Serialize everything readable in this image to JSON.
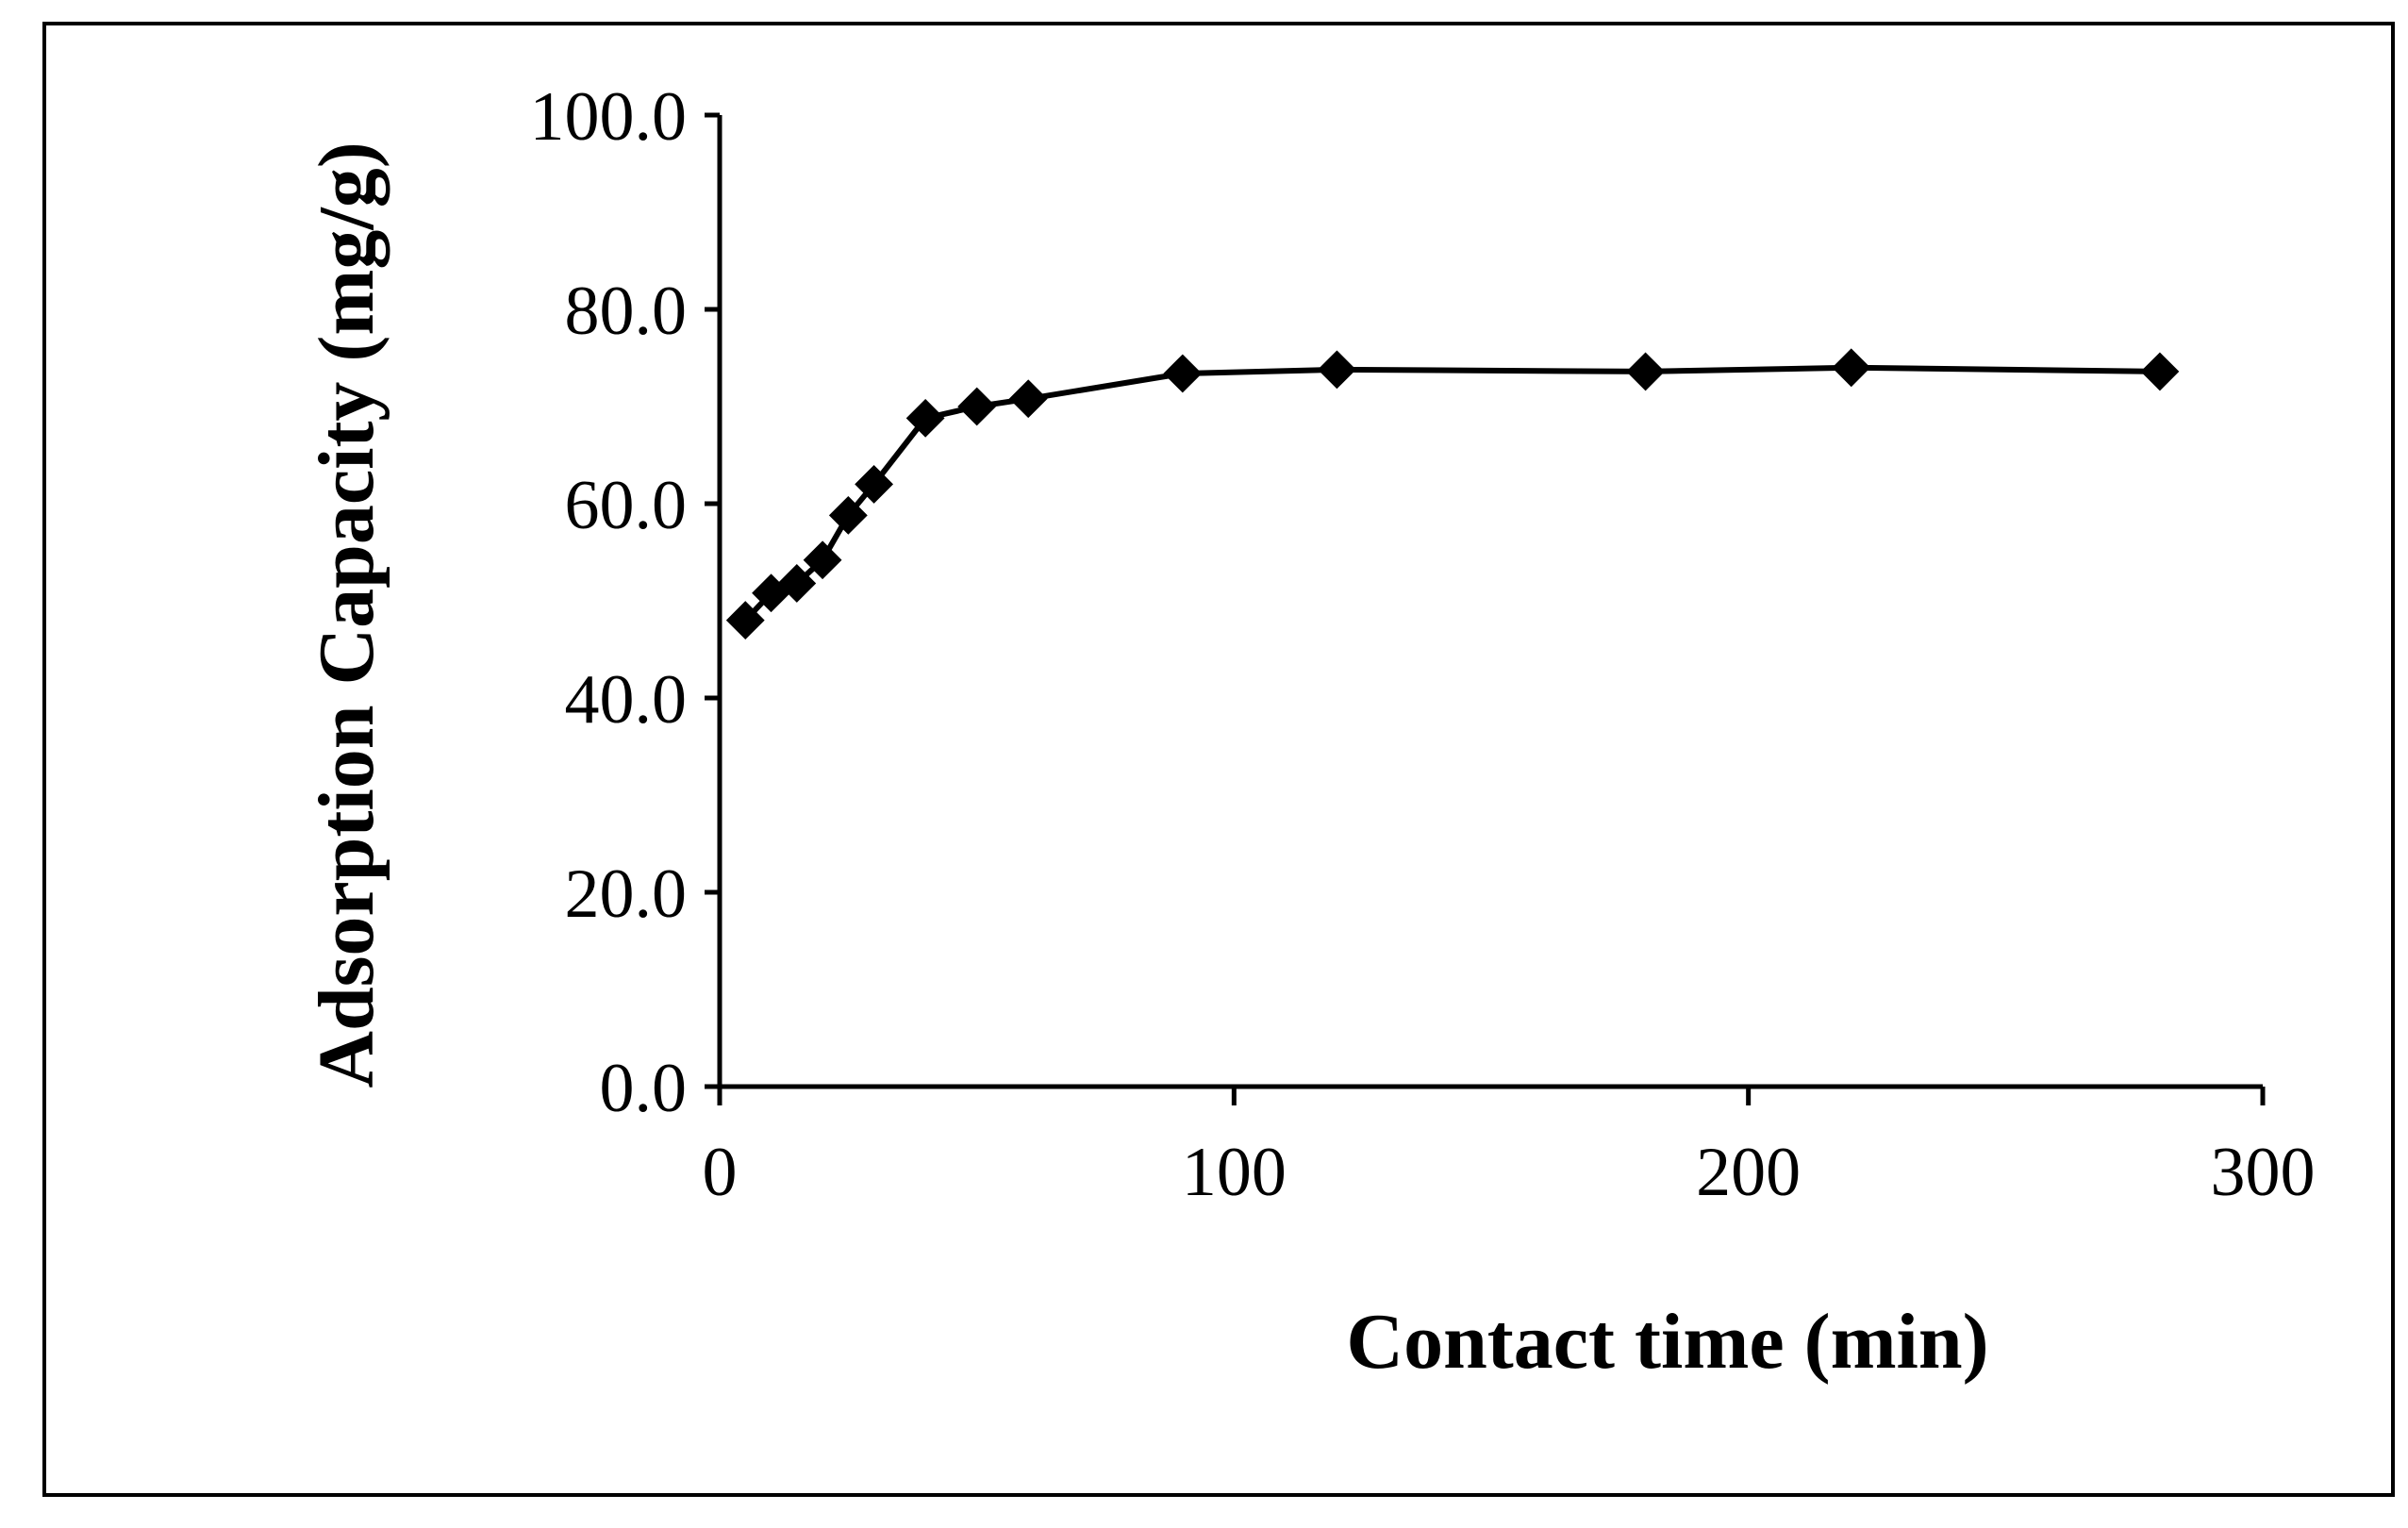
{
  "chart_data": {
    "type": "line",
    "title": "",
    "xlabel": "Contact time (min)",
    "ylabel": "Adsorption Capacity (mg/g)",
    "xlim": [
      0,
      300
    ],
    "ylim": [
      0,
      100
    ],
    "x_ticks": [
      0,
      100,
      200,
      300
    ],
    "x_tick_labels": [
      "0",
      "100",
      "200",
      "300"
    ],
    "y_ticks": [
      0,
      20,
      40,
      60,
      80,
      100
    ],
    "y_tick_labels": [
      "0.0",
      "20.0",
      "40.0",
      "60.0",
      "80.0",
      "100.0"
    ],
    "grid": false,
    "legend": "none",
    "marker": "diamond",
    "series": [
      {
        "x": [
          5,
          10,
          15,
          20,
          25,
          30,
          40,
          50,
          60,
          90,
          120,
          180,
          220,
          280
        ],
        "y": [
          48.0,
          50.8,
          51.8,
          54.2,
          58.8,
          62.0,
          68.8,
          70.0,
          70.8,
          73.4,
          73.8,
          73.6,
          74.0,
          73.6
        ],
        "color": "#000000"
      }
    ]
  }
}
